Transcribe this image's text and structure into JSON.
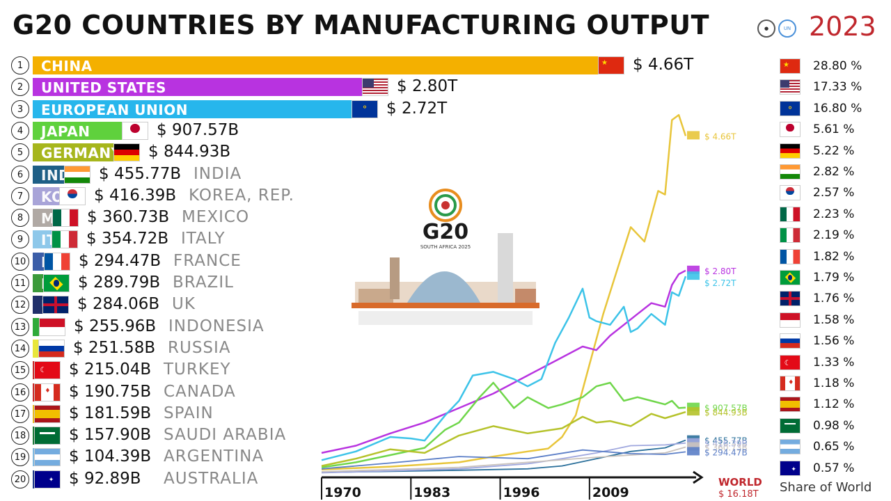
{
  "title": "G20 COUNTRIES BY MANUFACTURING OUTPUT",
  "year": "2023",
  "logo": {
    "text": "G20",
    "subtitle": "SOUTH AFRICA 2025"
  },
  "chart_data": {
    "type": "bar",
    "title": "G20 COUNTRIES BY MANUFACTURING OUTPUT",
    "year": "2023",
    "unit": "USD",
    "countries": [
      {
        "rank": "1",
        "name": "CHINA",
        "value_label": "$ 4.66T",
        "value": 4660,
        "share": "28.80 %",
        "color": "#f4b000",
        "flag": "china"
      },
      {
        "rank": "2",
        "name": "UNITED STATES",
        "value_label": "$ 2.80T",
        "value": 2800,
        "share": "17.33 %",
        "color": "#b833e0",
        "flag": "usa"
      },
      {
        "rank": "3",
        "name": "EUROPEAN UNION",
        "value_label": "$ 2.72T",
        "value": 2720,
        "share": "16.80 %",
        "color": "#27b6ec",
        "flag": "eu"
      },
      {
        "rank": "4",
        "name": "JAPAN",
        "value_label": "$ 907.57B",
        "value": 907.57,
        "share": "5.61 %",
        "color": "#5fd13d",
        "flag": "japan"
      },
      {
        "rank": "5",
        "name": "GERMANY",
        "value_label": "$ 844.93B",
        "value": 844.93,
        "share": "5.22 %",
        "color": "#a6b61c",
        "flag": "germany"
      },
      {
        "rank": "6",
        "name": "INDIA",
        "value_label": "$ 455.77B",
        "value": 455.77,
        "share": "2.82 %",
        "color": "#1e5f86",
        "flag": "india"
      },
      {
        "rank": "7",
        "name": "KOREA, REP.",
        "value_label": "$ 416.39B",
        "value": 416.39,
        "share": "2.57 %",
        "color": "#a8a4d8",
        "flag": "korea"
      },
      {
        "rank": "8",
        "name": "MEXICO",
        "value_label": "$ 360.73B",
        "value": 360.73,
        "share": "2.23 %",
        "color": "#b0a9a4",
        "flag": "mexico"
      },
      {
        "rank": "9",
        "name": "ITALY",
        "value_label": "$ 354.72B",
        "value": 354.72,
        "share": "2.19 %",
        "color": "#8ec8ea",
        "flag": "italy"
      },
      {
        "rank": "10",
        "name": "FRANCE",
        "value_label": "$ 294.47B",
        "value": 294.47,
        "share": "1.82 %",
        "color": "#3b5ea8",
        "flag": "france"
      },
      {
        "rank": "11",
        "name": "BRAZIL",
        "value_label": "$ 289.79B",
        "value": 289.79,
        "share": "1.79 %",
        "color": "#3b9a3b",
        "flag": "brazil"
      },
      {
        "rank": "12",
        "name": "UK",
        "value_label": "$ 284.06B",
        "value": 284.06,
        "share": "1.76 %",
        "color": "#20306a",
        "flag": "uk"
      },
      {
        "rank": "13",
        "name": "INDONESIA",
        "value_label": "$ 255.96B",
        "value": 255.96,
        "share": "1.58 %",
        "color": "#2faa3a",
        "flag": "indonesia"
      },
      {
        "rank": "14",
        "name": "RUSSIA",
        "value_label": "$ 251.58B",
        "value": 251.58,
        "share": "1.56 %",
        "color": "#e8e63b",
        "flag": "russia"
      },
      {
        "rank": "15",
        "name": "TURKEY",
        "value_label": "$ 215.04B",
        "value": 215.04,
        "share": "1.33 %",
        "color": "#c82a2a",
        "flag": "turkey"
      },
      {
        "rank": "16",
        "name": "CANADA",
        "value_label": "$ 190.75B",
        "value": 190.75,
        "share": "1.18 %",
        "color": "#c82a2a",
        "flag": "canada"
      },
      {
        "rank": "17",
        "name": "SPAIN",
        "value_label": "$ 181.59B",
        "value": 181.59,
        "share": "1.12 %",
        "color": "#e8b820",
        "flag": "spain"
      },
      {
        "rank": "18",
        "name": "SAUDI ARABIA",
        "value_label": "$ 157.90B",
        "value": 157.9,
        "share": "0.98 %",
        "color": "#1f7a3a",
        "flag": "saudi"
      },
      {
        "rank": "19",
        "name": "ARGENTINA",
        "value_label": "$ 104.39B",
        "value": 104.39,
        "share": "0.65 %",
        "color": "#7fb8e0",
        "flag": "argentina"
      },
      {
        "rank": "20",
        "name": "AUSTRALIA",
        "value_label": "$ 92.89B",
        "value": 92.89,
        "share": "0.57 %",
        "color": "#1e3a8a",
        "flag": "australia"
      }
    ],
    "line_chart": {
      "type": "line",
      "x_ticks": [
        "1970",
        "1983",
        "1996",
        "2009"
      ],
      "x_range": [
        1970,
        2023
      ],
      "y_range": [
        0,
        5000
      ],
      "series": [
        {
          "name": "CHINA",
          "color": "#e8c53a",
          "end_label": "$ 4.66T",
          "x": [
            1970,
            1980,
            1990,
            1995,
            2000,
            2003,
            2005,
            2007,
            2009,
            2011,
            2013,
            2015,
            2017,
            2019,
            2020,
            2021,
            2022,
            2023
          ],
          "y": [
            50,
            90,
            150,
            230,
            300,
            340,
            500,
            800,
            1500,
            2200,
            2800,
            3400,
            3200,
            3900,
            3850,
            4880,
            4950,
            4660
          ]
        },
        {
          "name": "UNITED STATES",
          "color": "#b833e0",
          "end_label": "$ 2.80T",
          "x": [
            1970,
            1975,
            1980,
            1985,
            1990,
            1995,
            2000,
            2005,
            2008,
            2010,
            2012,
            2014,
            2016,
            2018,
            2020,
            2021,
            2022,
            2023
          ],
          "y": [
            280,
            380,
            550,
            700,
            900,
            1100,
            1350,
            1600,
            1750,
            1700,
            1900,
            2050,
            2200,
            2350,
            2300,
            2600,
            2750,
            2800
          ]
        },
        {
          "name": "EUROPEAN UNION",
          "color": "#3cc3e8",
          "end_label": "$ 2.72T",
          "x": [
            1970,
            1975,
            1980,
            1983,
            1985,
            1988,
            1990,
            1992,
            1995,
            1998,
            2000,
            2002,
            2004,
            2006,
            2008,
            2009,
            2010,
            2012,
            2014,
            2015,
            2016,
            2018,
            2020,
            2021,
            2022,
            2023
          ],
          "y": [
            180,
            300,
            500,
            480,
            450,
            800,
            1000,
            1350,
            1400,
            1300,
            1200,
            1300,
            1800,
            2150,
            2550,
            2150,
            2100,
            2050,
            2300,
            1950,
            2000,
            2200,
            2050,
            2500,
            2450,
            2720
          ]
        },
        {
          "name": "JAPAN",
          "color": "#6fd64a",
          "end_label": "$ 907.57B",
          "x": [
            1970,
            1975,
            1980,
            1985,
            1988,
            1990,
            1993,
            1995,
            1998,
            2000,
            2003,
            2005,
            2008,
            2010,
            2012,
            2014,
            2016,
            2018,
            2020,
            2021,
            2022,
            2023
          ],
          "y": [
            80,
            150,
            250,
            350,
            600,
            700,
            1050,
            1250,
            900,
            1050,
            900,
            950,
            1050,
            1200,
            1250,
            1000,
            1050,
            1000,
            950,
            1000,
            900,
            907
          ]
        },
        {
          "name": "GERMANY",
          "color": "#b5c22a",
          "end_label": "$ 844.93B",
          "x": [
            1970,
            1975,
            1980,
            1985,
            1990,
            1995,
            2000,
            2005,
            2008,
            2010,
            2012,
            2015,
            2018,
            2020,
            2023
          ],
          "y": [
            100,
            200,
            330,
            280,
            520,
            650,
            550,
            620,
            780,
            700,
            720,
            650,
            820,
            760,
            845
          ]
        },
        {
          "name": "INDIA",
          "color": "#2a6f9a",
          "end_label": "$ 455.77B",
          "x": [
            1970,
            1990,
            2000,
            2005,
            2010,
            2015,
            2020,
            2023
          ],
          "y": [
            10,
            40,
            60,
            100,
            200,
            300,
            350,
            456
          ]
        },
        {
          "name": "KOREA, REP.",
          "color": "#9fa7de",
          "end_label": "$ 416.39B",
          "x": [
            1970,
            1990,
            2000,
            2005,
            2010,
            2015,
            2020,
            2023
          ],
          "y": [
            5,
            60,
            130,
            200,
            280,
            380,
            390,
            416
          ]
        },
        {
          "name": "MEXICO",
          "color": "#c9c2bc",
          "end_label": "$ 360.73B",
          "x": [
            1970,
            1990,
            2000,
            2010,
            2015,
            2020,
            2023
          ],
          "y": [
            20,
            80,
            150,
            220,
            250,
            280,
            361
          ]
        },
        {
          "name": "FRANCE",
          "color": "#5b7ec7",
          "end_label": "$ 294.47B",
          "x": [
            1970,
            1980,
            1990,
            2000,
            2008,
            2015,
            2020,
            2023
          ],
          "y": [
            60,
            140,
            230,
            200,
            320,
            270,
            260,
            294
          ]
        }
      ]
    },
    "share_label": "Share of World",
    "world": {
      "label": "WORLD",
      "value_label": "$ 16.18T"
    }
  }
}
